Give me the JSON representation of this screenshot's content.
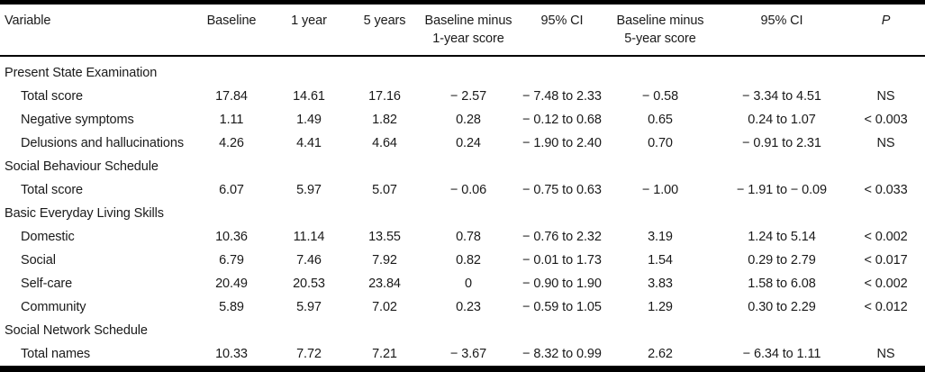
{
  "colors": {
    "text": "#1a1a1a",
    "rule": "#000000",
    "background": "#ffffff"
  },
  "table": {
    "headers": [
      {
        "label": "Variable",
        "align": "left",
        "italic": false
      },
      {
        "label": "Baseline",
        "align": "center",
        "italic": false
      },
      {
        "label": "1 year",
        "align": "center",
        "italic": false
      },
      {
        "label": "5 years",
        "align": "center",
        "italic": false
      },
      {
        "label": "Baseline minus\n1-year score",
        "align": "center",
        "italic": false
      },
      {
        "label": "95% CI",
        "align": "center",
        "italic": false
      },
      {
        "label": "Baseline minus\n5-year score",
        "align": "center",
        "italic": false
      },
      {
        "label": "95% CI",
        "align": "center",
        "italic": false
      },
      {
        "label": "P",
        "align": "center",
        "italic": true
      }
    ],
    "rows": [
      {
        "type": "section",
        "label": "Present State Examination"
      },
      {
        "type": "data",
        "label": "Total score",
        "values": [
          "17.84",
          "14.61",
          "17.16",
          "− 2.57",
          "− 7.48 to 2.33",
          "− 0.58",
          "− 3.34 to 4.51",
          "NS"
        ]
      },
      {
        "type": "data",
        "label": "Negative symptoms",
        "values": [
          "1.11",
          "1.49",
          "1.82",
          "0.28",
          "− 0.12 to 0.68",
          "0.65",
          "0.24 to 1.07",
          "< 0.003"
        ]
      },
      {
        "type": "data",
        "label": "Delusions and hallucinations",
        "values": [
          "4.26",
          "4.41",
          "4.64",
          "0.24",
          "− 1.90 to 2.40",
          "0.70",
          "− 0.91 to 2.31",
          "NS"
        ]
      },
      {
        "type": "section",
        "label": "Social Behaviour Schedule"
      },
      {
        "type": "data",
        "label": "Total score",
        "values": [
          "6.07",
          "5.97",
          "5.07",
          "− 0.06",
          "− 0.75 to 0.63",
          "− 1.00",
          "− 1.91 to − 0.09",
          "< 0.033"
        ]
      },
      {
        "type": "section",
        "label": "Basic Everyday Living Skills"
      },
      {
        "type": "data",
        "label": "Domestic",
        "values": [
          "10.36",
          "11.14",
          "13.55",
          "0.78",
          "− 0.76 to 2.32",
          "3.19",
          "1.24 to 5.14",
          "< 0.002"
        ]
      },
      {
        "type": "data",
        "label": "Social",
        "values": [
          "6.79",
          "7.46",
          "7.92",
          "0.82",
          "− 0.01 to 1.73",
          "1.54",
          "0.29 to 2.79",
          "< 0.017"
        ]
      },
      {
        "type": "data",
        "label": "Self-care",
        "values": [
          "20.49",
          "20.53",
          "23.84",
          "0",
          "− 0.90 to 1.90",
          "3.83",
          "1.58 to 6.08",
          "< 0.002"
        ]
      },
      {
        "type": "data",
        "label": "Community",
        "values": [
          "5.89",
          "5.97",
          "7.02",
          "0.23",
          "− 0.59 to 1.05",
          "1.29",
          "0.30 to 2.29",
          "< 0.012"
        ]
      },
      {
        "type": "section",
        "label": "Social Network Schedule"
      },
      {
        "type": "data",
        "label": "Total names",
        "values": [
          "10.33",
          "7.72",
          "7.21",
          "− 3.67",
          "− 8.32 to 0.99",
          "2.62",
          "− 6.34 to 1.11",
          "NS"
        ]
      }
    ]
  }
}
